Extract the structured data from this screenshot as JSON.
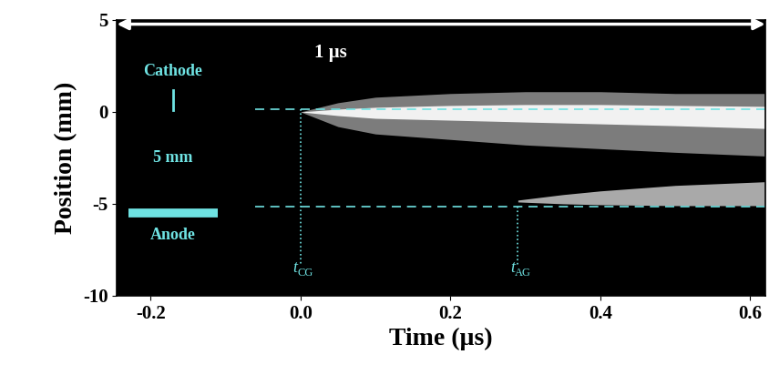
{
  "chart_data": {
    "type": "streak",
    "xlabel": "Time (µs)",
    "ylabel": "Position (mm)",
    "xlim": [
      -0.245,
      0.62
    ],
    "xticks": [
      -0.2,
      0.0,
      0.2,
      0.4,
      0.6
    ],
    "ylim": [
      -10,
      5
    ],
    "yticks": [
      -10,
      -5,
      0,
      5
    ],
    "background": "#000000",
    "annotation_color": "#6fe3e3",
    "scale_bar": {
      "label": "1 µs",
      "color": "#ffffff"
    },
    "electrodes": {
      "cathode": "Cathode",
      "gap": "5 mm",
      "anode": "Anode"
    },
    "levels": {
      "cathode": 0.15,
      "anode": -5.15
    },
    "onsets": [
      {
        "symbol": "t",
        "subscript": "CG",
        "time": 0.0
      },
      {
        "symbol": "t",
        "subscript": "AG",
        "time": 0.29
      }
    ],
    "series": [
      {
        "color": "#8a8a8a",
        "x": [
          0.0,
          0.05,
          0.1,
          0.2,
          0.3,
          0.4,
          0.5,
          0.62
        ],
        "upper": [
          0.0,
          0.5,
          0.8,
          1.0,
          1.1,
          1.1,
          1.0,
          1.0
        ],
        "lower": [
          0.0,
          -0.8,
          -1.2,
          -1.5,
          -1.8,
          -2.0,
          -2.2,
          -2.4
        ]
      },
      {
        "color": "#ffffff",
        "x": [
          0.0,
          0.05,
          0.1,
          0.2,
          0.3,
          0.4,
          0.5,
          0.62
        ],
        "upper": [
          0.0,
          0.15,
          0.25,
          0.35,
          0.4,
          0.4,
          0.35,
          0.3
        ],
        "lower": [
          0.0,
          -0.2,
          -0.35,
          -0.45,
          -0.55,
          -0.65,
          -0.75,
          -0.9
        ]
      },
      {
        "color": "#bdbdbd",
        "x": [
          0.29,
          0.35,
          0.4,
          0.5,
          0.62
        ],
        "upper": [
          -4.8,
          -4.5,
          -4.3,
          -4.0,
          -3.8
        ],
        "lower": [
          -4.9,
          -5.0,
          -5.05,
          -5.1,
          -5.1
        ]
      }
    ]
  }
}
